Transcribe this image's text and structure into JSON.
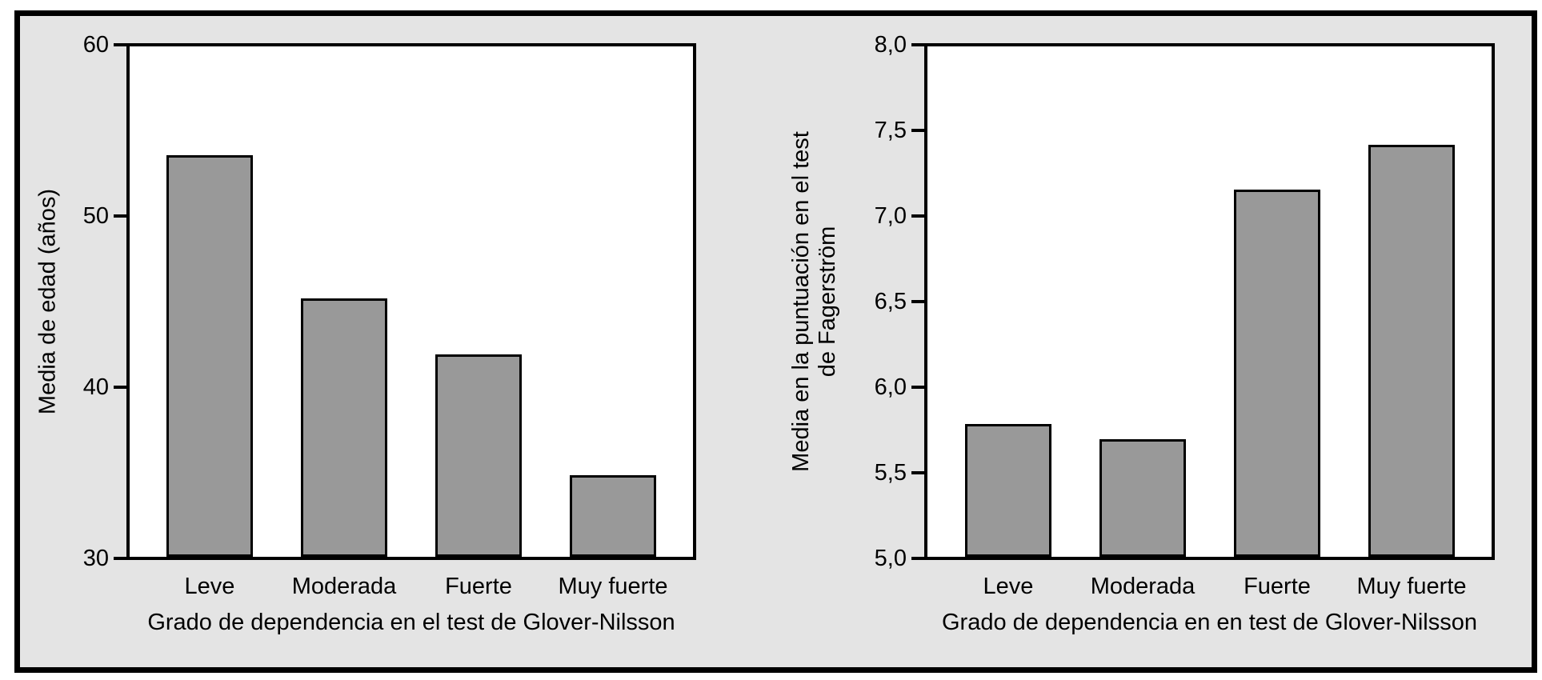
{
  "figure": {
    "background_color": "#e4e4e4",
    "frame_color": "#000000",
    "plot_background": "#ffffff",
    "bar_fill": "#999999",
    "bar_border": "#000000",
    "text_color": "#000000"
  },
  "chart_data": [
    {
      "type": "bar",
      "title": "",
      "categories": [
        "Leve",
        "Moderada",
        "Fuerte",
        "Muy fuerte"
      ],
      "values": [
        53.6,
        45.2,
        41.9,
        34.8
      ],
      "xlabel": "Grado de dependencia en el test de Glover-Nilsson",
      "ylabel": "Media de edad (años)",
      "ylabel_lines": [
        "Media de edad (años)"
      ],
      "ylim": [
        30,
        60
      ],
      "yticks": [
        60,
        50,
        40,
        30
      ],
      "ytick_labels": [
        "60",
        "50",
        "40",
        "30"
      ],
      "grid": false,
      "legend_position": "none"
    },
    {
      "type": "bar",
      "title": "",
      "categories": [
        "Leve",
        "Moderada",
        "Fuerte",
        "Muy fuerte"
      ],
      "values": [
        5.78,
        5.69,
        7.16,
        7.42
      ],
      "xlabel": "Grado de dependencia en en test de Glover-Nilsson",
      "ylabel": "Media en la puntuación en el test de Fagerström",
      "ylabel_lines": [
        "Media en la puntuación en el test",
        "de Fagerström"
      ],
      "ylim": [
        5.0,
        8.0
      ],
      "yticks": [
        8.0,
        7.5,
        7.0,
        6.5,
        6.0,
        5.5,
        5.0
      ],
      "ytick_labels": [
        "8,0",
        "7,5",
        "7,0",
        "6,5",
        "6,0",
        "5,5",
        "5,0"
      ],
      "grid": false,
      "legend_position": "none"
    }
  ]
}
